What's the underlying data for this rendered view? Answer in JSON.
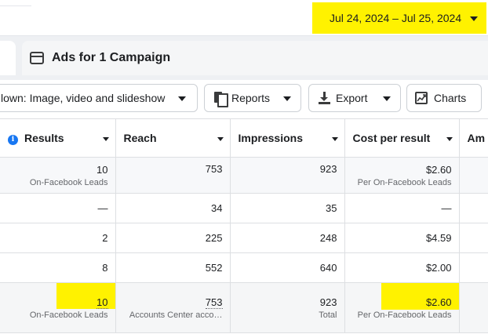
{
  "date_range": {
    "label": "Jul 24, 2024 – Jul 25, 2024"
  },
  "tab": {
    "title": "Ads for 1 Campaign"
  },
  "toolbar": {
    "breakdown_label": "lown: Image, video and slideshow",
    "reports_label": "Reports",
    "export_label": "Export",
    "charts_label": "Charts"
  },
  "table": {
    "headers": {
      "results": "Results",
      "reach": "Reach",
      "impressions": "Impressions",
      "cost_per_result": "Cost per result",
      "amount": "Am"
    },
    "rows": [
      {
        "results": "10",
        "results_sub": "On-Facebook Leads",
        "reach": "753",
        "impressions": "923",
        "cost": "$2.60",
        "cost_sub": "Per On-Facebook Leads"
      },
      {
        "results": "—",
        "reach": "34",
        "impressions": "35",
        "cost": "—"
      },
      {
        "results": "2",
        "reach": "225",
        "impressions": "248",
        "cost": "$4.59"
      },
      {
        "results": "8",
        "reach": "552",
        "impressions": "640",
        "cost": "$2.00"
      }
    ],
    "total": {
      "results": "10",
      "results_sub": "On-Facebook Leads",
      "reach": "753",
      "reach_sub": "Accounts Center acco…",
      "impressions": "923",
      "impressions_sub": "Total",
      "cost": "$2.60",
      "cost_sub": "Per On-Facebook Leads"
    }
  },
  "colors": {
    "highlight": "#fff200",
    "accent": "#1877f2"
  }
}
